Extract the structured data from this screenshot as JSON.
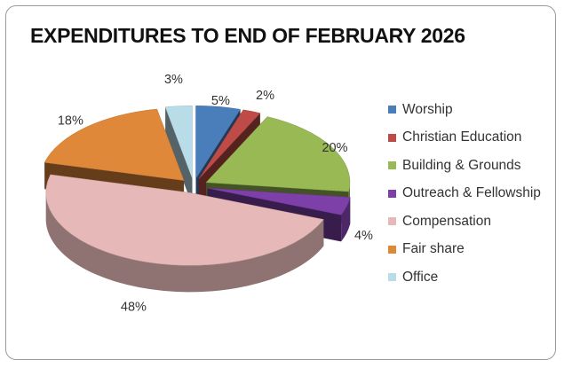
{
  "chart_data": {
    "type": "pie",
    "title": "EXPENDITURES TO END OF FEBRUARY 2026",
    "slices": [
      {
        "name": "Worship",
        "value": 5,
        "label": "5%",
        "color": "#4a7ebb"
      },
      {
        "name": "Christian Education",
        "value": 2,
        "label": "2%",
        "color": "#be4b48"
      },
      {
        "name": "Building & Grounds",
        "value": 20,
        "label": "20%",
        "color": "#98b954"
      },
      {
        "name": "Outreach & Fellowship",
        "value": 4,
        "label": "4%",
        "color": "#7d3fa8"
      },
      {
        "name": "Compensation",
        "value": 48,
        "label": "48%",
        "color": "#e6b9b8"
      },
      {
        "name": "Fair share",
        "value": 18,
        "label": "18%",
        "color": "#e0883a"
      },
      {
        "name": "Office",
        "value": 3,
        "label": "3%",
        "color": "#b9dde8"
      }
    ],
    "legend_position": "right",
    "style": "3d-exploded"
  }
}
